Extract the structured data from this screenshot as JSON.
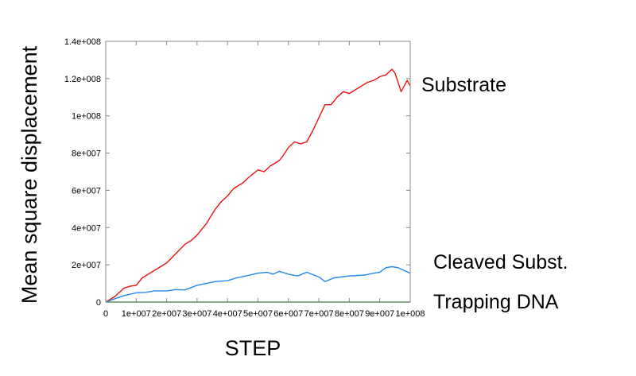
{
  "chart_data": {
    "type": "line",
    "xlabel": "STEP",
    "ylabel": "Mean square displacement",
    "xlim": [
      0,
      100000000
    ],
    "ylim": [
      0,
      140000000
    ],
    "x_ticks": [
      {
        "value": 0,
        "label": "0"
      },
      {
        "value": 10000000,
        "label": "1e+007"
      },
      {
        "value": 20000000,
        "label": "2e+007"
      },
      {
        "value": 30000000,
        "label": "3e+007"
      },
      {
        "value": 40000000,
        "label": "4e+007"
      },
      {
        "value": 50000000,
        "label": "5e+007"
      },
      {
        "value": 60000000,
        "label": "6e+007"
      },
      {
        "value": 70000000,
        "label": "7e+007"
      },
      {
        "value": 80000000,
        "label": "8e+007"
      },
      {
        "value": 90000000,
        "label": "9e+007"
      },
      {
        "value": 100000000,
        "label": "1e+008"
      }
    ],
    "y_ticks": [
      {
        "value": 0,
        "label": "0"
      },
      {
        "value": 20000000,
        "label": "2e+007"
      },
      {
        "value": 40000000,
        "label": "4e+007"
      },
      {
        "value": 60000000,
        "label": "6e+007"
      },
      {
        "value": 80000000,
        "label": "8e+007"
      },
      {
        "value": 100000000,
        "label": "1e+008"
      },
      {
        "value": 120000000,
        "label": "1.2e+008"
      },
      {
        "value": 140000000,
        "label": "1.4e+008"
      }
    ],
    "grid": false,
    "series": [
      {
        "name": "Substrate",
        "color": "#ee1111",
        "x": [
          0,
          3000000,
          6000000,
          8000000,
          10000000,
          12000000,
          15000000,
          18000000,
          20000000,
          23000000,
          26000000,
          28000000,
          30000000,
          33000000,
          36000000,
          38000000,
          40000000,
          42000000,
          45000000,
          47000000,
          50000000,
          52000000,
          54000000,
          55000000,
          57000000,
          58000000,
          60000000,
          62000000,
          64000000,
          66000000,
          68000000,
          70000000,
          72000000,
          74000000,
          76000000,
          78000000,
          80000000,
          82000000,
          84000000,
          86000000,
          88000000,
          90000000,
          92000000,
          94000000,
          95000000,
          96000000,
          97000000,
          98000000,
          99000000,
          100000000
        ],
        "y": [
          0,
          3000000,
          7500000,
          8500000,
          9000000,
          13000000,
          16000000,
          19000000,
          21000000,
          26000000,
          31000000,
          33000000,
          36000000,
          42000000,
          50000000,
          54000000,
          57000000,
          61000000,
          64000000,
          67000000,
          71000000,
          70000000,
          73000000,
          74000000,
          76000000,
          78000000,
          83000000,
          86000000,
          85000000,
          86000000,
          92000000,
          99000000,
          106000000,
          106000000,
          110000000,
          113000000,
          112000000,
          114000000,
          116000000,
          118000000,
          119000000,
          121000000,
          122000000,
          125000000,
          123000000,
          118000000,
          113000000,
          116000000,
          119000000,
          116000000
        ]
      },
      {
        "name": "Cleaved Subst.",
        "color": "#2288ee",
        "x": [
          0,
          3000000,
          6000000,
          8000000,
          10000000,
          13000000,
          16000000,
          20000000,
          23000000,
          26000000,
          30000000,
          33000000,
          36000000,
          40000000,
          43000000,
          46000000,
          50000000,
          53000000,
          55000000,
          57000000,
          60000000,
          63000000,
          66000000,
          70000000,
          72000000,
          75000000,
          80000000,
          85000000,
          88000000,
          90000000,
          92000000,
          94000000,
          96000000,
          98000000,
          100000000
        ],
        "y": [
          0,
          1800000,
          3500000,
          4200000,
          5000000,
          5200000,
          6000000,
          6000000,
          6700000,
          6500000,
          9000000,
          10000000,
          11000000,
          11500000,
          13000000,
          14000000,
          15500000,
          16000000,
          15000000,
          16500000,
          15000000,
          14000000,
          16000000,
          13500000,
          11000000,
          13000000,
          14000000,
          14500000,
          15500000,
          16000000,
          18500000,
          19000000,
          18500000,
          17000000,
          15500000
        ]
      },
      {
        "name": "Trapping DNA",
        "color": "#119911",
        "x": [
          0,
          100000000
        ],
        "y": [
          0,
          0
        ]
      }
    ]
  }
}
